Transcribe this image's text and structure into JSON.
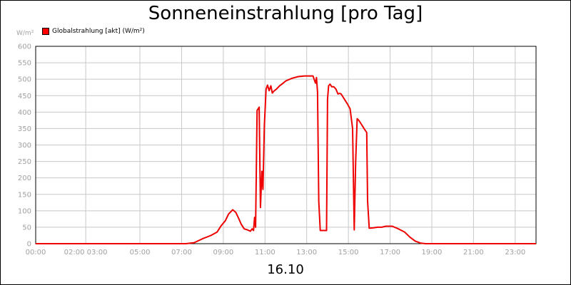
{
  "chart_data": {
    "type": "line",
    "title": "Sonneneinstrahlung [pro Tag]",
    "ylabel": "W/m²",
    "xlabel": "16.10",
    "ylim": [
      0,
      600
    ],
    "xlim": [
      0,
      24
    ],
    "grid": true,
    "legend_position": "top-left",
    "y_ticks": [
      0,
      50,
      100,
      150,
      200,
      250,
      300,
      350,
      400,
      450,
      500,
      550,
      600
    ],
    "x_ticks": [
      {
        "x": 0,
        "label": "00:00"
      },
      {
        "x": 2.4,
        "label": "02:00 03:00"
      },
      {
        "x": 5,
        "label": "05:00"
      },
      {
        "x": 7,
        "label": "07:00"
      },
      {
        "x": 9,
        "label": "09:00"
      },
      {
        "x": 11,
        "label": "11:00"
      },
      {
        "x": 13,
        "label": "13:00"
      },
      {
        "x": 15,
        "label": "15:00"
      },
      {
        "x": 17,
        "label": "17:00"
      },
      {
        "x": 19,
        "label": "19:00"
      },
      {
        "x": 21,
        "label": "21:00"
      },
      {
        "x": 23,
        "label": "23:00"
      }
    ],
    "series": [
      {
        "name": "Globalstrahlung [akt] (W/m²)",
        "color": "#ee0000",
        "x": [
          0,
          7.2,
          7.6,
          8.0,
          8.4,
          8.7,
          8.9,
          9.1,
          9.25,
          9.45,
          9.6,
          9.75,
          9.85,
          10.0,
          10.15,
          10.3,
          10.38,
          10.45,
          10.5,
          10.55,
          10.62,
          10.72,
          10.78,
          10.85,
          10.9,
          10.97,
          11.05,
          11.12,
          11.2,
          11.28,
          11.35,
          11.4,
          11.45,
          11.55,
          11.7,
          11.85,
          12.0,
          12.3,
          12.6,
          12.9,
          13.3,
          13.42,
          13.47,
          13.52,
          13.58,
          13.65,
          13.72,
          13.8,
          13.95,
          14.0,
          14.05,
          14.12,
          14.2,
          14.3,
          14.4,
          14.5,
          14.58,
          14.65,
          14.8,
          14.95,
          15.08,
          15.2,
          15.28,
          15.35,
          15.42,
          15.5,
          15.6,
          15.75,
          15.88,
          15.92,
          16.0,
          16.2,
          16.4,
          16.6,
          16.8,
          17.1,
          17.4,
          17.7,
          17.95,
          18.2,
          18.45,
          18.7,
          24
        ],
        "y": [
          0,
          0,
          3,
          15,
          25,
          35,
          55,
          70,
          90,
          103,
          95,
          75,
          60,
          45,
          42,
          38,
          45,
          40,
          80,
          50,
          405,
          415,
          110,
          220,
          165,
          360,
          470,
          482,
          465,
          480,
          458,
          462,
          465,
          470,
          480,
          487,
          495,
          503,
          508,
          510,
          510,
          488,
          505,
          460,
          130,
          40,
          40,
          40,
          40,
          440,
          480,
          485,
          477,
          477,
          470,
          455,
          457,
          455,
          440,
          425,
          410,
          350,
          42,
          250,
          380,
          375,
          365,
          350,
          338,
          130,
          47,
          48,
          50,
          50,
          53,
          53,
          45,
          35,
          20,
          8,
          2,
          0,
          0
        ]
      }
    ]
  }
}
